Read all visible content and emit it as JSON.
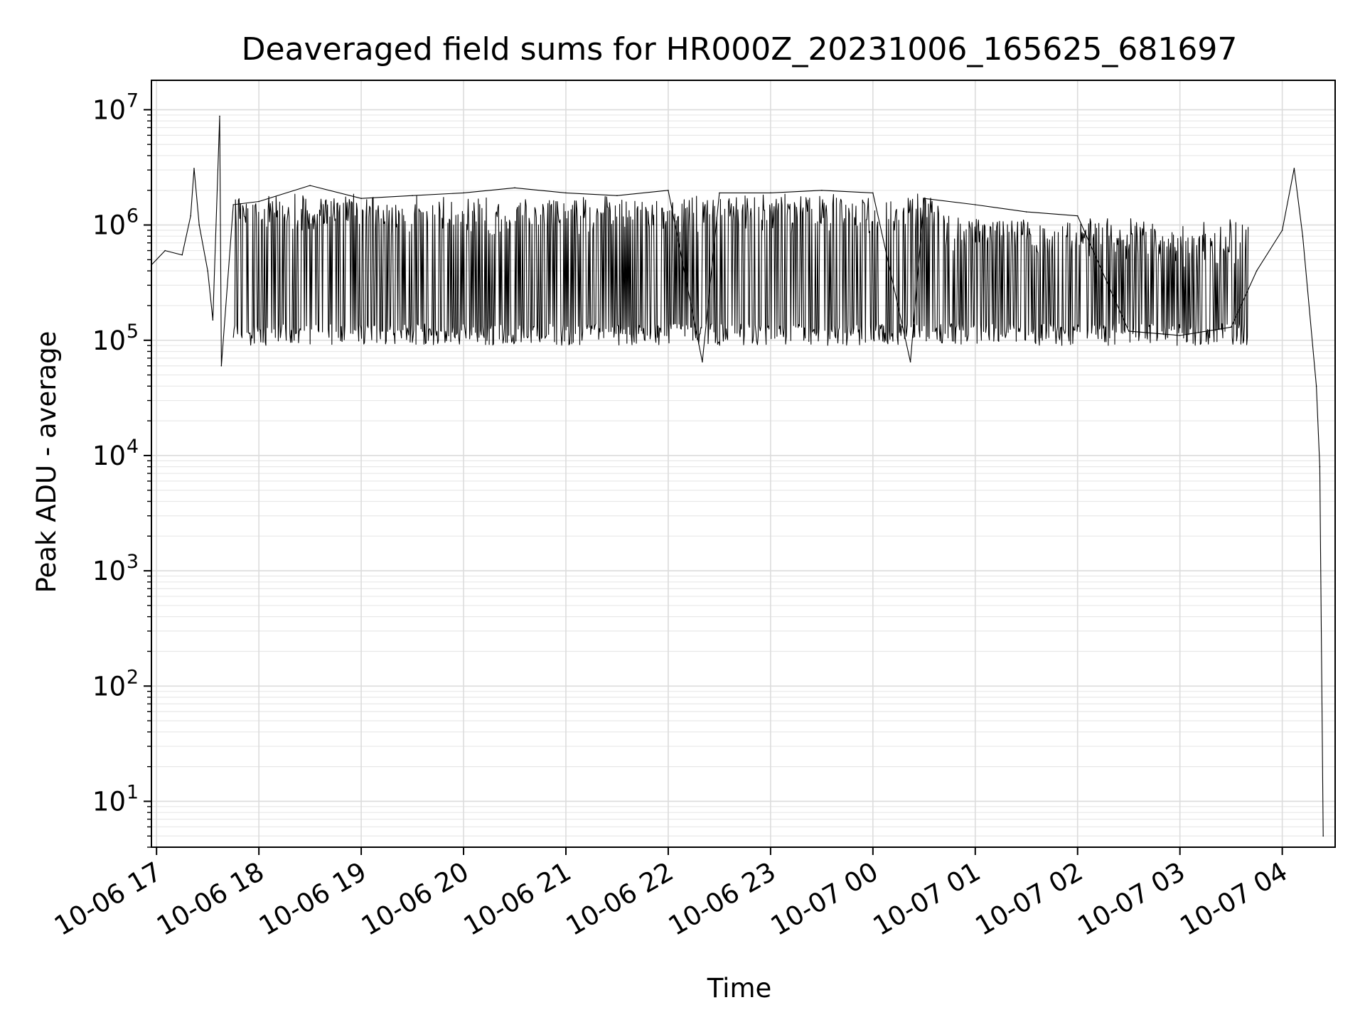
{
  "chart_data": {
    "type": "line",
    "title": "Deaveraged field sums for HR000Z_20231006_165625_681697",
    "xlabel": "Time",
    "ylabel": "Peak ADU - average",
    "yscale": "log",
    "ylim": [
      4,
      18000000
    ],
    "xlim": [
      "10-06 16:57",
      "10-07 04:31"
    ],
    "grid": true,
    "legend": "none",
    "line_color": "#000000",
    "x_ticks": [
      "10-06 17",
      "10-06 18",
      "10-06 19",
      "10-06 20",
      "10-06 21",
      "10-06 22",
      "10-06 23",
      "10-07 00",
      "10-07 01",
      "10-07 02",
      "10-07 03",
      "10-07 04"
    ],
    "y_ticks": [
      {
        "value": 10,
        "base": "10",
        "exp": "1"
      },
      {
        "value": 100,
        "base": "10",
        "exp": "2"
      },
      {
        "value": 1000,
        "base": "10",
        "exp": "3"
      },
      {
        "value": 10000,
        "base": "10",
        "exp": "4"
      },
      {
        "value": 100000,
        "base": "10",
        "exp": "5"
      },
      {
        "value": 1000000,
        "base": "10",
        "exp": "6"
      },
      {
        "value": 10000000,
        "base": "10",
        "exp": "7"
      }
    ],
    "series": [
      {
        "points": [
          [
            "10-06 16:57",
            450000
          ],
          [
            "10-06 17:05",
            600000
          ],
          [
            "10-06 17:15",
            550000
          ],
          [
            "10-06 17:20",
            1200000
          ],
          [
            "10-06 17:22",
            3100000
          ],
          [
            "10-06 17:25",
            1000000
          ],
          [
            "10-06 17:30",
            400000
          ],
          [
            "10-06 17:33",
            150000
          ],
          [
            "10-06 17:37",
            8800000
          ],
          [
            "10-06 17:38",
            60000
          ],
          [
            "10-06 17:45",
            1500000
          ],
          [
            "10-06 18:00",
            1600000
          ],
          [
            "10-06 18:30",
            2200000
          ],
          [
            "10-06 19:00",
            1700000
          ],
          [
            "10-06 19:30",
            1800000
          ],
          [
            "10-06 20:00",
            1900000
          ],
          [
            "10-06 20:30",
            2100000
          ],
          [
            "10-06 21:00",
            1900000
          ],
          [
            "10-06 21:30",
            1800000
          ],
          [
            "10-06 22:00",
            2000000
          ],
          [
            "10-06 22:20",
            65000
          ],
          [
            "10-06 22:30",
            1900000
          ],
          [
            "10-06 23:00",
            1900000
          ],
          [
            "10-06 23:30",
            2000000
          ],
          [
            "10-07 00:00",
            1900000
          ],
          [
            "10-07 00:22",
            65000
          ],
          [
            "10-07 00:30",
            1700000
          ],
          [
            "10-07 01:00",
            1500000
          ],
          [
            "10-07 01:30",
            1300000
          ],
          [
            "10-07 02:00",
            1200000
          ],
          [
            "10-07 02:30",
            120000
          ],
          [
            "10-07 03:00",
            110000
          ],
          [
            "10-07 03:30",
            130000
          ],
          [
            "10-07 03:45",
            400000
          ],
          [
            "10-07 04:00",
            900000
          ],
          [
            "10-07 04:07",
            3100000
          ],
          [
            "10-07 04:12",
            800000
          ],
          [
            "10-07 04:20",
            40000
          ],
          [
            "10-07 04:22",
            8000
          ],
          [
            "10-07 04:24",
            5
          ]
        ]
      }
    ]
  }
}
